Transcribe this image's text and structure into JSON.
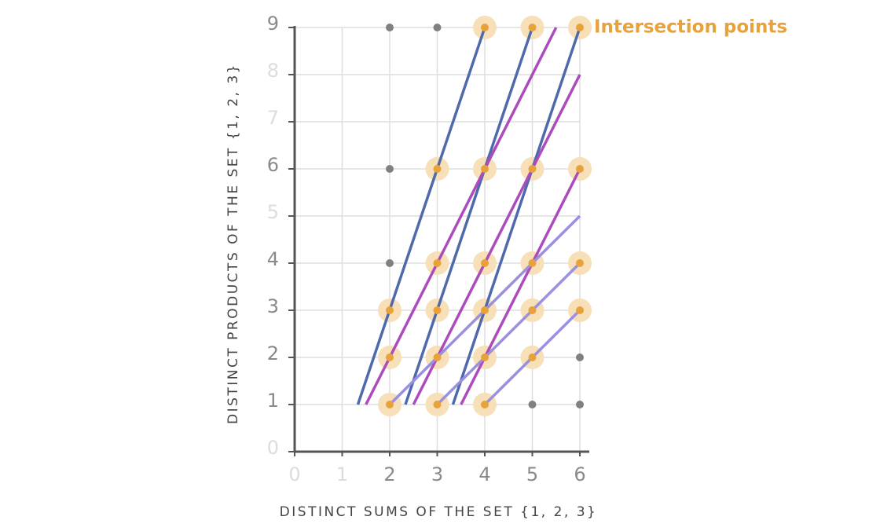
{
  "chart_data": {
    "type": "scatter",
    "xlabel": "DISTINCT SUMS OF THE SET {1, 2, 3}",
    "ylabel": "DISTINCT PRODUCTS OF THE SET {1, 2, 3}",
    "annotation": "Intersection points",
    "annotation_color": "#e8a23c",
    "xlim": [
      0,
      6
    ],
    "ylim": [
      0,
      9
    ],
    "xticks": [
      0,
      1,
      2,
      3,
      4,
      5,
      6
    ],
    "yticks": [
      0,
      1,
      2,
      3,
      4,
      5,
      6,
      7,
      8,
      9
    ],
    "grid": true,
    "tick_color": "#8a8a8a",
    "faint_tick_color": "#dcdcdc",
    "points": {
      "color": "#808080",
      "x": [
        2,
        3,
        2,
        2,
        5,
        6,
        6
      ],
      "values": [
        9,
        9,
        6,
        4,
        1,
        1,
        2
      ]
    },
    "intersections": {
      "color": "#e8a23c",
      "halo": "#f7dfb8",
      "x": [
        4,
        5,
        6,
        3,
        4,
        5,
        6,
        3,
        4,
        5,
        6,
        2,
        3,
        4,
        5,
        6,
        2,
        3,
        4,
        5,
        2,
        3,
        4
      ],
      "values": [
        9,
        9,
        9,
        6,
        6,
        6,
        6,
        4,
        4,
        4,
        4,
        3,
        3,
        3,
        3,
        3,
        2,
        2,
        2,
        2,
        1,
        1,
        1
      ]
    },
    "lines": [
      {
        "color": "#4f6aac",
        "x": [
          1.33,
          4
        ],
        "values": [
          1,
          9
        ]
      },
      {
        "color": "#4f6aac",
        "x": [
          2.33,
          5
        ],
        "values": [
          1,
          9
        ]
      },
      {
        "color": "#4f6aac",
        "x": [
          3.33,
          6
        ],
        "values": [
          1,
          9
        ]
      },
      {
        "color": "#ac4cbc",
        "x": [
          1.5,
          5.5
        ],
        "values": [
          1,
          9
        ]
      },
      {
        "color": "#ac4cbc",
        "x": [
          2.5,
          6
        ],
        "values": [
          1,
          8
        ]
      },
      {
        "color": "#ac4cbc",
        "x": [
          3.5,
          6
        ],
        "values": [
          1,
          6
        ]
      },
      {
        "color": "#9b8fe0",
        "x": [
          2,
          6
        ],
        "values": [
          1,
          5
        ]
      },
      {
        "color": "#9b8fe0",
        "x": [
          3,
          6
        ],
        "values": [
          1,
          4
        ]
      },
      {
        "color": "#9b8fe0",
        "x": [
          4,
          6
        ],
        "values": [
          1,
          3
        ]
      }
    ]
  }
}
